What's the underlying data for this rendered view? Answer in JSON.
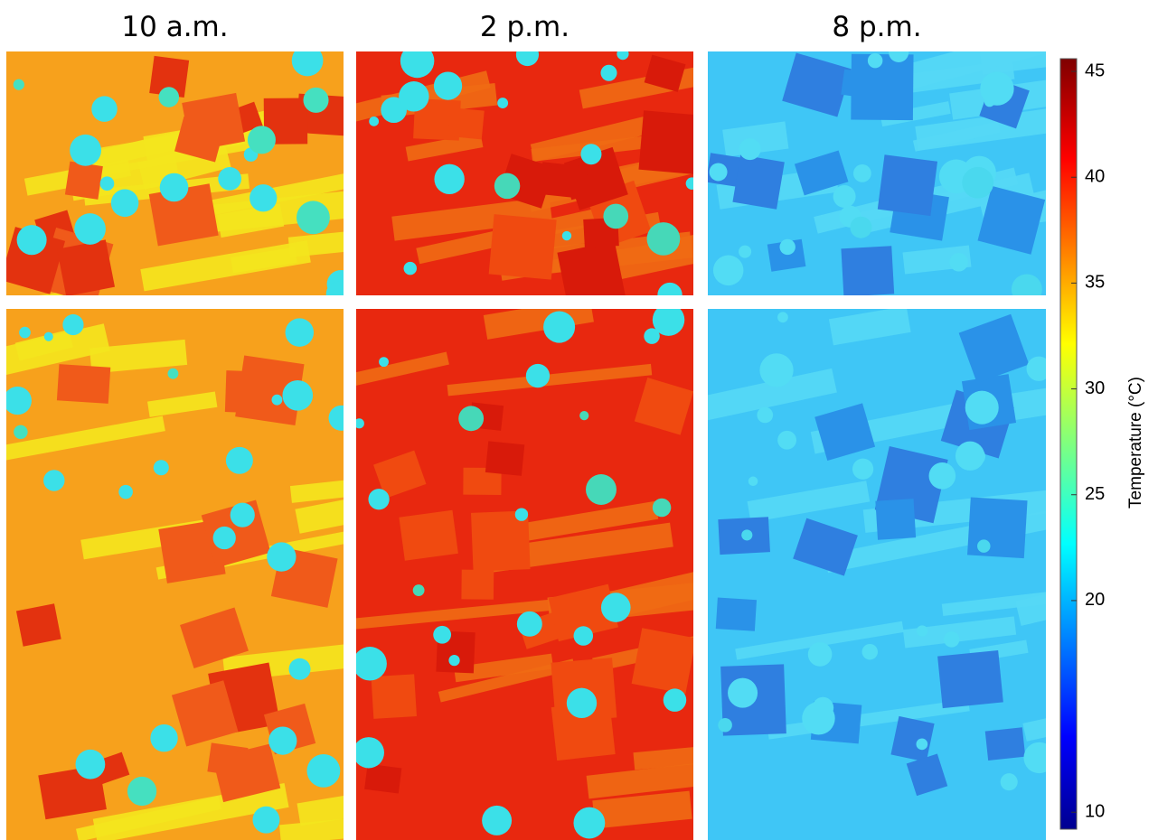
{
  "columns": [
    "10 a.m.",
    "2 p.m.",
    "8 p.m."
  ],
  "colorbar": {
    "label": "Temperature (°C)",
    "lim": [
      9.2,
      45.6
    ],
    "ticks": [
      10,
      20,
      25,
      30,
      35,
      40,
      45
    ]
  }
}
